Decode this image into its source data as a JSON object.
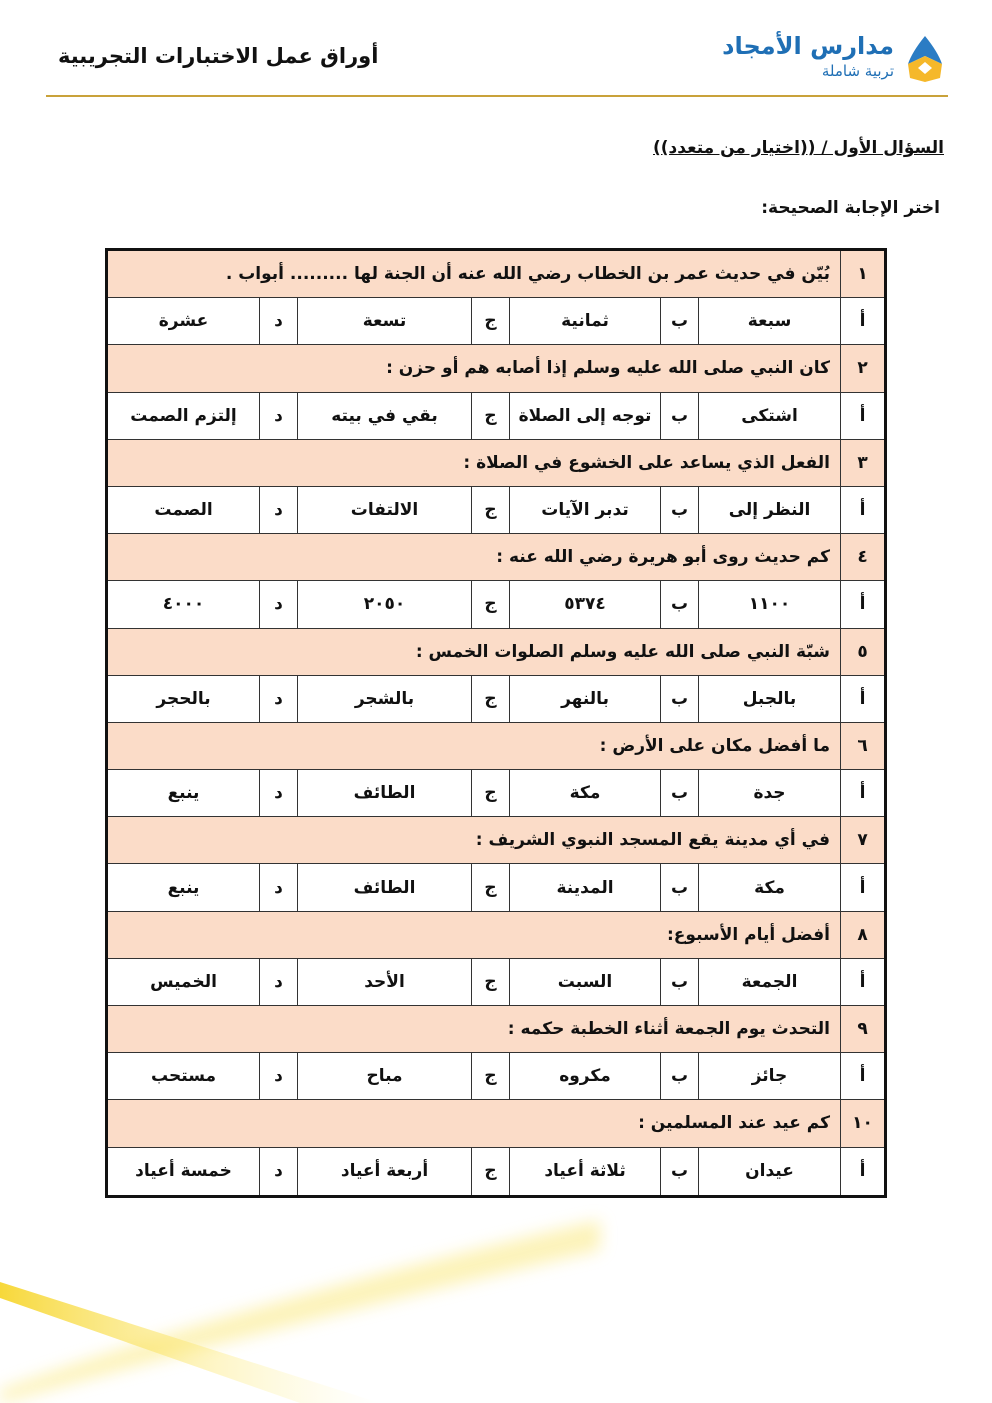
{
  "header": {
    "title": "أوراق عمل الاختبارات التجريبية",
    "logo_name": "مدارس الأمجاد",
    "logo_tagline": "تربية شاملة"
  },
  "colors": {
    "question_row": "#fbdcc8",
    "rule": "#c9a23a",
    "brand": "#1f6fb5"
  },
  "section": {
    "title": "السؤال الأول / ((اختيار من متعدد))",
    "instruction": "اختر الإجابة الصحيحة:"
  },
  "option_letters": [
    "أ",
    "ب",
    "ج",
    "د"
  ],
  "questions": [
    {
      "num": "١",
      "text": "بُيّن في حديث عمر بن الخطاب رضي الله عنه أن الجنة لها ......... أبواب .",
      "options": [
        "سبعة",
        "ثمانية",
        "تسعة",
        "عشرة"
      ]
    },
    {
      "num": "٢",
      "text": "كان النبي صلى الله عليه وسلم إذا أصابه هم أو حزن :",
      "options": [
        "اشتكى",
        "توجه إلى الصلاة",
        "بقي في بيته",
        "إلتزم الصمت"
      ]
    },
    {
      "num": "٣",
      "text": "الفعل الذي يساعد على الخشوع في الصلاة :",
      "options": [
        "النظر إلى",
        "تدبر الآيات",
        "الالتفات",
        "الصمت"
      ]
    },
    {
      "num": "٤",
      "text": "كم حديث روى أبو هريرة رضي الله عنه :",
      "options": [
        "١١٠٠",
        "٥٣٧٤",
        "٢٠٥٠",
        "٤٠٠٠"
      ]
    },
    {
      "num": "٥",
      "text": "شبّة النبي صلى الله عليه وسلم الصلوات الخمس :",
      "options": [
        "بالجبل",
        "بالنهر",
        "بالشجر",
        "بالحجر"
      ]
    },
    {
      "num": "٦",
      "text": "ما أفضل مكان على الأرض :",
      "options": [
        "جدة",
        "مكة",
        "الطائف",
        "ينبع"
      ]
    },
    {
      "num": "٧",
      "text": "في أي مدينة يقع المسجد النبوي الشريف :",
      "options": [
        "مكة",
        "المدينة",
        "الطائف",
        "ينبع"
      ]
    },
    {
      "num": "٨",
      "text": "أفضل أيام الأسبوع:",
      "options": [
        "الجمعة",
        "السبت",
        "الأحد",
        "الخميس"
      ]
    },
    {
      "num": "٩",
      "text": "التحدث يوم الجمعة أثناء الخطبة حكمه :",
      "options": [
        "جائز",
        "مكروه",
        "مباح",
        "مستحب"
      ]
    },
    {
      "num": "١٠",
      "text": "كم عيد عند المسلمين :",
      "options": [
        "عيدان",
        "ثلاثة أعياد",
        "أربعة أعياد",
        "خمسة أعياد"
      ]
    }
  ]
}
